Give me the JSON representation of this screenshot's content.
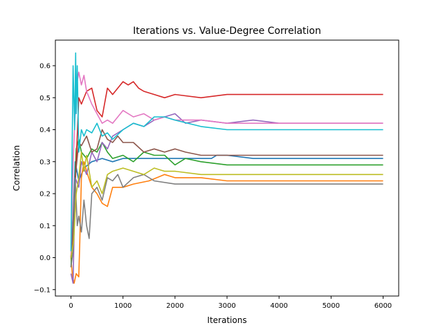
{
  "chart_data": {
    "type": "line",
    "title": "Iterations vs. Value-Degree Correlation",
    "xlabel": "Iterations",
    "ylabel": "Correlation",
    "xlim": [
      -300,
      6300
    ],
    "ylim": [
      -0.12,
      0.68
    ],
    "xticks": [
      0,
      1000,
      2000,
      3000,
      4000,
      5000,
      6000
    ],
    "xtick_labels": [
      "0",
      "1000",
      "2000",
      "3000",
      "4000",
      "5000",
      "6000"
    ],
    "yticks": [
      -0.1,
      0.0,
      0.1,
      0.2,
      0.3,
      0.4,
      0.5,
      0.6
    ],
    "ytick_labels": [
      "−0.1",
      "0.0",
      "0.1",
      "0.2",
      "0.3",
      "0.4",
      "0.5",
      "0.6"
    ],
    "grid": false,
    "legend": false,
    "series": [
      {
        "color": "#1f77b4",
        "x": [
          0,
          40,
          80,
          150,
          250,
          400,
          600,
          800,
          1000,
          1300,
          1600,
          2000,
          2400,
          2700,
          2800,
          3000,
          3500,
          4000,
          5000,
          6000
        ],
        "y": [
          0.0,
          0.12,
          0.3,
          0.24,
          0.28,
          0.3,
          0.31,
          0.3,
          0.31,
          0.31,
          0.31,
          0.31,
          0.31,
          0.31,
          0.32,
          0.32,
          0.31,
          0.31,
          0.31,
          0.31
        ]
      },
      {
        "color": "#ff7f0e",
        "x": [
          0,
          30,
          60,
          100,
          150,
          170,
          200,
          250,
          300,
          400,
          500,
          600,
          700,
          800,
          1000,
          1200,
          1500,
          1800,
          2000,
          2500,
          3000,
          3500,
          4000,
          5000,
          6000
        ],
        "y": [
          0.0,
          -0.06,
          -0.08,
          -0.05,
          -0.06,
          0.05,
          0.25,
          0.3,
          0.27,
          0.22,
          0.2,
          0.17,
          0.16,
          0.22,
          0.22,
          0.23,
          0.24,
          0.26,
          0.25,
          0.25,
          0.24,
          0.24,
          0.24,
          0.24,
          0.24
        ]
      },
      {
        "color": "#2ca02c",
        "x": [
          0,
          50,
          100,
          150,
          200,
          300,
          400,
          500,
          600,
          700,
          800,
          1000,
          1200,
          1400,
          1600,
          1800,
          2000,
          2200,
          2500,
          3000,
          3500,
          4000,
          5000,
          6000
        ],
        "y": [
          -0.03,
          0.12,
          0.34,
          0.37,
          0.33,
          0.31,
          0.34,
          0.33,
          0.36,
          0.33,
          0.31,
          0.32,
          0.3,
          0.33,
          0.32,
          0.32,
          0.29,
          0.31,
          0.3,
          0.29,
          0.29,
          0.29,
          0.29,
          0.29
        ]
      },
      {
        "color": "#d62728",
        "x": [
          0,
          50,
          100,
          150,
          200,
          300,
          400,
          500,
          600,
          700,
          800,
          900,
          1000,
          1100,
          1200,
          1300,
          1400,
          1600,
          1800,
          2000,
          2500,
          3000,
          3500,
          4000,
          5000,
          6000
        ],
        "y": [
          0.0,
          0.1,
          0.3,
          0.5,
          0.48,
          0.52,
          0.53,
          0.46,
          0.44,
          0.53,
          0.51,
          0.53,
          0.55,
          0.54,
          0.55,
          0.53,
          0.52,
          0.51,
          0.5,
          0.51,
          0.5,
          0.51,
          0.51,
          0.51,
          0.51,
          0.51
        ]
      },
      {
        "color": "#9467bd",
        "x": [
          0,
          40,
          80,
          150,
          200,
          300,
          400,
          500,
          600,
          700,
          800,
          1000,
          1200,
          1400,
          1600,
          1800,
          2000,
          2200,
          2500,
          3000,
          3500,
          4000,
          5000,
          6000
        ],
        "y": [
          -0.05,
          -0.08,
          0.25,
          0.22,
          0.3,
          0.26,
          0.33,
          0.3,
          0.36,
          0.34,
          0.38,
          0.4,
          0.42,
          0.41,
          0.43,
          0.44,
          0.45,
          0.42,
          0.43,
          0.42,
          0.43,
          0.42,
          0.42,
          0.42
        ]
      },
      {
        "color": "#8c564b",
        "x": [
          0,
          40,
          80,
          150,
          200,
          300,
          400,
          500,
          600,
          700,
          800,
          900,
          1000,
          1200,
          1400,
          1600,
          1800,
          2000,
          2200,
          2500,
          3000,
          3500,
          4000,
          5000,
          6000
        ],
        "y": [
          0.0,
          0.1,
          0.25,
          0.36,
          0.35,
          0.38,
          0.33,
          0.34,
          0.4,
          0.37,
          0.36,
          0.38,
          0.36,
          0.36,
          0.33,
          0.34,
          0.33,
          0.34,
          0.33,
          0.32,
          0.32,
          0.32,
          0.32,
          0.32,
          0.32
        ]
      },
      {
        "color": "#e377c2",
        "x": [
          0,
          40,
          80,
          120,
          150,
          200,
          250,
          300,
          400,
          500,
          600,
          700,
          800,
          1000,
          1200,
          1400,
          1600,
          1800,
          2000,
          2500,
          3000,
          3500,
          4000,
          5000,
          6000
        ],
        "y": [
          0.0,
          0.3,
          0.45,
          0.55,
          0.58,
          0.54,
          0.57,
          0.52,
          0.48,
          0.45,
          0.42,
          0.43,
          0.42,
          0.46,
          0.44,
          0.45,
          0.43,
          0.44,
          0.43,
          0.43,
          0.42,
          0.42,
          0.42,
          0.42,
          0.42
        ]
      },
      {
        "color": "#7f7f7f",
        "x": [
          0,
          40,
          80,
          120,
          150,
          200,
          250,
          300,
          350,
          400,
          500,
          600,
          700,
          800,
          900,
          1000,
          1200,
          1400,
          1600,
          2000,
          2500,
          3000,
          3500,
          4000,
          5000,
          6000
        ],
        "y": [
          -0.03,
          0.02,
          0.25,
          0.1,
          0.13,
          0.08,
          0.18,
          0.1,
          0.06,
          0.2,
          0.22,
          0.18,
          0.25,
          0.24,
          0.26,
          0.22,
          0.25,
          0.26,
          0.24,
          0.23,
          0.23,
          0.23,
          0.23,
          0.23,
          0.23,
          0.23
        ]
      },
      {
        "color": "#bcbd22",
        "x": [
          0,
          50,
          100,
          150,
          200,
          250,
          300,
          400,
          500,
          600,
          700,
          800,
          1000,
          1200,
          1400,
          1600,
          1800,
          2000,
          2500,
          3000,
          3500,
          4000,
          5000,
          6000
        ],
        "y": [
          0.0,
          0.05,
          0.2,
          0.25,
          0.33,
          0.27,
          0.32,
          0.22,
          0.24,
          0.2,
          0.26,
          0.27,
          0.28,
          0.27,
          0.26,
          0.28,
          0.27,
          0.27,
          0.26,
          0.26,
          0.26,
          0.26,
          0.26,
          0.26
        ]
      },
      {
        "color": "#17becf",
        "x": [
          0,
          40,
          70,
          90,
          100,
          120,
          150,
          200,
          250,
          300,
          400,
          500,
          600,
          700,
          800,
          1000,
          1200,
          1400,
          1600,
          1800,
          2000,
          2500,
          3000,
          3500,
          4000,
          5000,
          6000
        ],
        "y": [
          0.02,
          0.6,
          0.4,
          0.64,
          0.45,
          0.6,
          0.33,
          0.4,
          0.38,
          0.4,
          0.39,
          0.42,
          0.38,
          0.39,
          0.37,
          0.4,
          0.42,
          0.41,
          0.44,
          0.44,
          0.43,
          0.41,
          0.4,
          0.4,
          0.4,
          0.4,
          0.4
        ]
      }
    ]
  }
}
